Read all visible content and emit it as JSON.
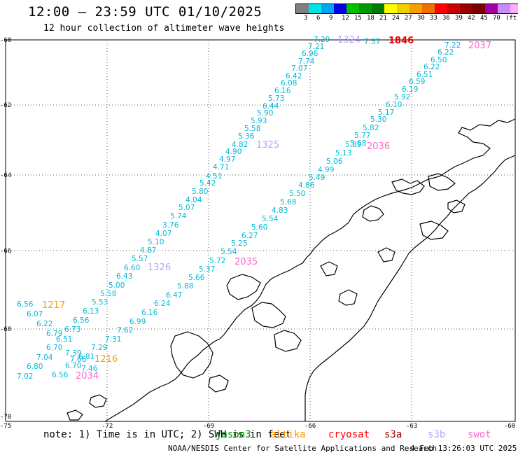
{
  "header": {
    "title": "12:00 – 23:59 UTC 01/10/2025",
    "subtitle": "12 hour collection of altimeter wave heights"
  },
  "colorbar": {
    "colors": [
      "#808080",
      "#00e5e5",
      "#00a8f0",
      "#0000e8",
      "#00c000",
      "#009900",
      "#007a00",
      "#ffff00",
      "#f0d000",
      "#f5a000",
      "#f07000",
      "#ff0000",
      "#cc0000",
      "#990000",
      "#7a0000",
      "#a000a0",
      "#cc88ff",
      "#ffaaff",
      "#000000"
    ],
    "labels": [
      "3",
      "6",
      "9",
      "12",
      "15",
      "18",
      "21",
      "24",
      "27",
      "30",
      "33",
      "36",
      "39",
      "42",
      "45",
      "70",
      "(ft)"
    ]
  },
  "axes": {
    "lat_labels": [
      "-60",
      "-62",
      "-64",
      "-66",
      "-68",
      "-70"
    ],
    "lon_labels": [
      "-75",
      "-72",
      "-69",
      "-66",
      "-63",
      "-60"
    ]
  },
  "track_times": [
    {
      "text": "1324",
      "color": "#bba0ff"
    },
    {
      "text": "1846",
      "color": "#ee0000"
    },
    {
      "text": "2037",
      "color": "#ff66cc"
    },
    {
      "text": "1325",
      "color": "#bba0ff"
    },
    {
      "text": "2036",
      "color": "#ff66cc"
    },
    {
      "text": "1326",
      "color": "#bba0ff"
    },
    {
      "text": "2035",
      "color": "#ff66cc"
    },
    {
      "text": "1217",
      "color": "#ff9900"
    },
    {
      "text": "1216",
      "color": "#ff9900"
    },
    {
      "text": "2034",
      "color": "#ff66cc"
    }
  ],
  "wave_heights": [
    "7.29",
    "7.57",
    "7.21",
    "6.96",
    "7.74",
    "7.07",
    "6.42",
    "6.08",
    "6.16",
    "5.73",
    "6.44",
    "5.90",
    "5.93",
    "5.58",
    "5.36",
    "4.82",
    "4.90",
    "4.97",
    "4.71",
    "4.51",
    "5.42",
    "5.80",
    "4.04",
    "5.07",
    "5.74",
    "3.76",
    "4.07",
    "5.10",
    "4.87",
    "5.57",
    "6.60",
    "6.43",
    "5.00",
    "5.58",
    "5.53",
    "6.13",
    "6.56",
    "6.56",
    "6.07",
    "6.22",
    "6.79",
    "6.73",
    "6.51",
    "6.70",
    "7.04",
    "6.80",
    "7.02",
    "6.56",
    "7.39",
    "7.66",
    "6.81",
    "6.70",
    "7.46",
    "7.29",
    "7.31",
    "7.62",
    "6.99",
    "6.16",
    "6.24",
    "6.47",
    "5.88",
    "5.66",
    "5.37",
    "5.72",
    "5.54",
    "5.25",
    "6.27",
    "5.60",
    "5.54",
    "4.83",
    "5.68",
    "5.50",
    "4.86",
    "5.49",
    "4.99",
    "5.06",
    "5.13",
    "5.89",
    "5.68",
    "5.77",
    "5.82",
    "5.30",
    "5.17",
    "6.10",
    "5.92",
    "6.19",
    "6.59",
    "6.51",
    "6.22",
    "6.50",
    "6.22",
    "7.22"
  ],
  "footer": {
    "note": "note: 1) Time is in UTC; 2) SWH is in feet",
    "satellites": [
      {
        "name": "jason3",
        "color": "#008800"
      },
      {
        "name": "altika",
        "color": "#ff9900"
      },
      {
        "name": "cryosat",
        "color": "#ff0000"
      },
      {
        "name": "s3a",
        "color": "#990000"
      },
      {
        "name": "s3b",
        "color": "#bba0ff"
      },
      {
        "name": "swot",
        "color": "#ff66cc"
      }
    ],
    "credit": "NOAA/NESDIS Center for Satellite Applications and Research",
    "timestamp": "4 Feb 13:26:03 UTC 2025"
  },
  "colors": {
    "wave_text": "#00b8d8",
    "grid": "#555555",
    "coast": "#000000"
  }
}
